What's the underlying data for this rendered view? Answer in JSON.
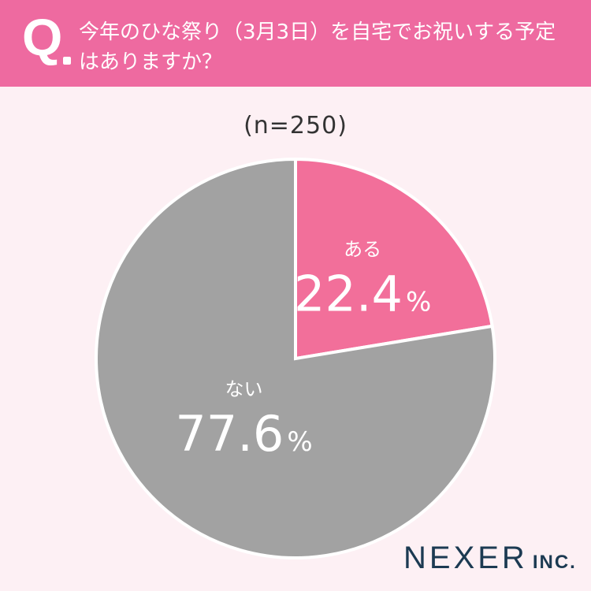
{
  "header": {
    "q_label": "Q",
    "question_line1": "今年のひな祭り（3月3日）を自宅でお祝いする予定",
    "question_line2": "はありますか？"
  },
  "sample_note": "(n=250)",
  "chart_data": {
    "type": "pie",
    "n": 250,
    "slices": [
      {
        "label": "ある",
        "value": 22.4,
        "display": "22.4",
        "unit": "%",
        "color": "#f26f9a"
      },
      {
        "label": "ない",
        "value": 77.6,
        "display": "77.6",
        "unit": "%",
        "color": "#a2a2a2"
      }
    ]
  },
  "colors": {
    "header_bg": "#ee6aa0",
    "page_bg": "#fdf0f4",
    "slice_border": "#ffffff"
  },
  "brand": {
    "name": "NEXER",
    "suffix": "INC."
  }
}
